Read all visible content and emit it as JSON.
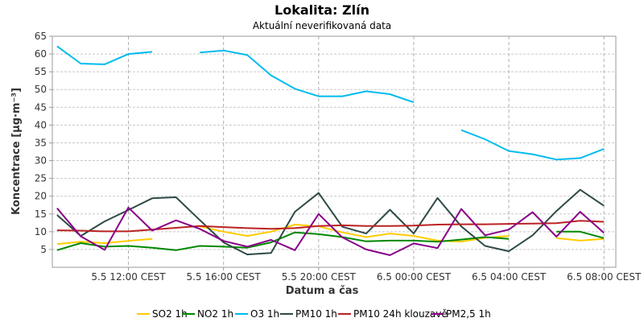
{
  "chart_data": {
    "type": "line",
    "title": "Lokalita: Zlín",
    "subtitle": "Aktuální neverifikovaná data",
    "xlabel": "Datum a čas",
    "ylabel": "Koncentrace [µg·m⁻³]",
    "ylim": [
      0,
      65
    ],
    "y_ticks": [
      5,
      10,
      15,
      20,
      25,
      30,
      35,
      40,
      45,
      50,
      55,
      60,
      65
    ],
    "x_ticks": [
      3,
      7,
      11,
      15,
      19,
      23
    ],
    "x_tick_labels": [
      "5.5 12:00 CEST",
      "5.5 16:00 CEST",
      "5.5 20:00 CEST",
      "6.5 00:00 CEST",
      "6.5 04:00 CEST",
      "6.5 08:00 CEST"
    ],
    "xlim": [
      -0.2,
      23.5
    ],
    "grid": true,
    "legend_position": "bottom",
    "x": [
      0,
      1,
      2,
      3,
      4,
      5,
      6,
      7,
      8,
      9,
      10,
      11,
      12,
      13,
      14,
      15,
      16,
      17,
      18,
      19,
      20,
      21,
      22,
      23
    ],
    "series": [
      {
        "name": "SO2 1h",
        "color": "#ffcc00",
        "values": [
          6.5,
          7.2,
          6.8,
          7.4,
          8.0,
          null,
          11.5,
          10.0,
          8.8,
          10.0,
          12.0,
          11.5,
          9.8,
          8.5,
          9.5,
          8.8,
          7.5,
          7.2,
          8.3,
          8.8,
          null,
          8.2,
          7.5,
          8.0
        ]
      },
      {
        "name": "NO2 1h",
        "color": "#008800",
        "values": [
          4.8,
          6.8,
          5.8,
          6.0,
          5.5,
          4.8,
          6.0,
          5.8,
          5.5,
          7.0,
          9.8,
          9.3,
          8.5,
          7.3,
          7.5,
          7.5,
          7.2,
          7.8,
          8.5,
          8.0,
          null,
          10.0,
          10.0,
          8.2
        ]
      },
      {
        "name": "O3 1h",
        "color": "#00bbee",
        "values": [
          62.2,
          57.3,
          57.1,
          60.0,
          60.6,
          null,
          60.4,
          61.0,
          59.7,
          54.0,
          50.2,
          48.1,
          48.1,
          49.5,
          48.7,
          46.4,
          null,
          38.6,
          36.0,
          32.7,
          31.8,
          30.3,
          30.7,
          33.3
        ]
      },
      {
        "name": "PM10 1h",
        "color": "#2e4a47",
        "values": [
          14.7,
          8.8,
          12.9,
          16.1,
          19.4,
          19.7,
          13.3,
          7.0,
          3.6,
          4.0,
          15.6,
          20.9,
          11.4,
          9.5,
          16.2,
          9.5,
          19.5,
          11.5,
          6.0,
          4.5,
          9.0,
          15.8,
          21.8,
          17.3
        ]
      },
      {
        "name": "PM10 24h klouzavě",
        "color": "#bb2222",
        "values": [
          10.4,
          10.3,
          10.1,
          10.1,
          10.6,
          11.1,
          11.6,
          11.3,
          11.0,
          10.8,
          11.0,
          11.6,
          11.8,
          11.6,
          11.6,
          11.7,
          12.0,
          12.1,
          12.1,
          12.2,
          12.3,
          12.4,
          13.1,
          12.8
        ]
      },
      {
        "name": "PM2,5 1h",
        "color": "#880088",
        "values": [
          16.6,
          8.7,
          4.9,
          16.8,
          10.3,
          13.2,
          10.8,
          7.4,
          5.8,
          7.7,
          4.8,
          15.0,
          8.4,
          5.0,
          3.4,
          6.7,
          5.4,
          16.4,
          9.0,
          10.6,
          15.5,
          8.6,
          15.6,
          9.7
        ]
      }
    ]
  }
}
